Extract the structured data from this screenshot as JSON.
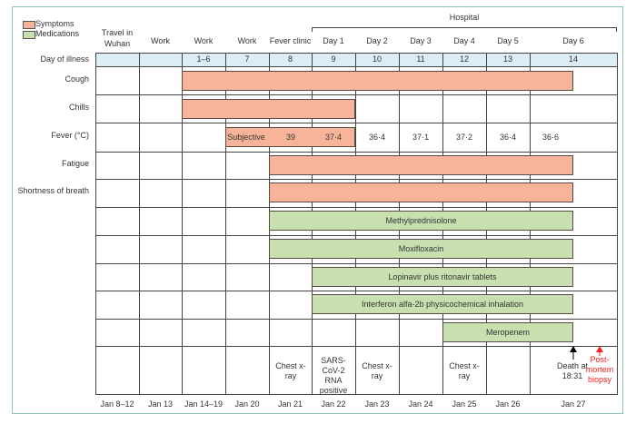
{
  "legend": {
    "symptoms": "Symptoms",
    "medications": "Medications",
    "symptom_color": "#f8b49a",
    "medication_color": "#c8e0b0"
  },
  "hospital_label": "Hospital",
  "columns_top": [
    "Travel in Wuhan",
    "Work",
    "Work",
    "Work",
    "Fever clinic",
    "Day 1",
    "Day 2",
    "Day 3",
    "Day 4",
    "Day 5",
    "Day 6"
  ],
  "day_of_illness_label": "Day of illness",
  "day_of_illness": [
    "",
    "",
    "1–6",
    "7",
    "8",
    "9",
    "10",
    "11",
    "12",
    "13",
    "14"
  ],
  "row_labels": [
    "Cough",
    "Chills",
    "Fever (°C)",
    "Fatigue",
    "Shortness of breath"
  ],
  "fever": {
    "bar_values": [
      "Subjective",
      "39",
      "37·4"
    ],
    "values": [
      "36·4",
      "37·1",
      "37·2",
      "36·4",
      "36·6"
    ]
  },
  "medications": [
    "Methylprednisolone",
    "Moxifloxacin",
    "Lopinavir plus ritonavir tablets",
    "Interferon alfa-2b physicochemical inhalation",
    "Meropenem"
  ],
  "events": {
    "jan21": "Chest x-ray",
    "jan22": "SARS-CoV-2 RNA positive",
    "jan23": "Chest x-ray",
    "jan25": "Chest x-ray",
    "death": "Death at 18:31",
    "biopsy": "Post-mortem biopsy",
    "biopsy_color": "#ff2020"
  },
  "dates": [
    "Jan 8–12",
    "Jan 13",
    "Jan 14–19",
    "Jan 20",
    "Jan 21",
    "Jan 22",
    "Jan 23",
    "Jan 24",
    "Jan 25",
    "Jan 26",
    "Jan 27"
  ]
}
